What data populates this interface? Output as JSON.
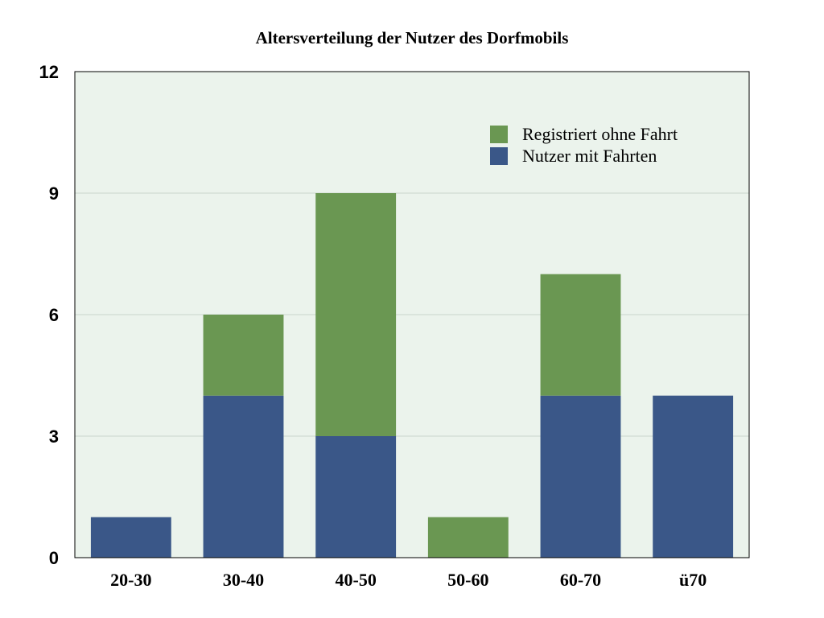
{
  "chart_data": {
    "type": "bar",
    "stacked": true,
    "title": "Altersverteilung der Nutzer des Dorfmobils",
    "xlabel": "",
    "ylabel": "",
    "categories": [
      "20-30",
      "30-40",
      "40-50",
      "50-60",
      "60-70",
      "ü70"
    ],
    "ylim": [
      0,
      12
    ],
    "yticks": [
      "0",
      "3",
      "6",
      "9",
      "12"
    ],
    "grid": true,
    "legend_position": "top-right",
    "series": [
      {
        "name": "Nutzer mit Fahrten",
        "color": "#3a5788",
        "values": [
          1,
          4,
          3,
          0,
          4,
          4
        ]
      },
      {
        "name": "Registriert ohne Fahrt",
        "color": "#6a9752",
        "values": [
          0,
          2,
          6,
          1,
          3,
          0
        ]
      }
    ],
    "legend_order": [
      1,
      0
    ]
  },
  "colors": {
    "plot_background": "#ebf3ec",
    "grid": "#c9d4cb",
    "axis": "#000000"
  }
}
